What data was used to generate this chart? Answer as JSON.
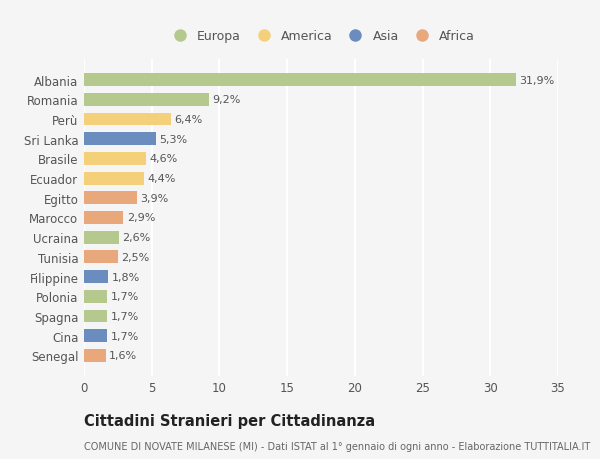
{
  "countries": [
    "Albania",
    "Romania",
    "Perù",
    "Sri Lanka",
    "Brasile",
    "Ecuador",
    "Egitto",
    "Marocco",
    "Ucraina",
    "Tunisia",
    "Filippine",
    "Polonia",
    "Spagna",
    "Cina",
    "Senegal"
  ],
  "values": [
    31.9,
    9.2,
    6.4,
    5.3,
    4.6,
    4.4,
    3.9,
    2.9,
    2.6,
    2.5,
    1.8,
    1.7,
    1.7,
    1.7,
    1.6
  ],
  "categories": [
    "Europa",
    "Europa",
    "America",
    "Asia",
    "America",
    "America",
    "Africa",
    "Africa",
    "Europa",
    "Africa",
    "Asia",
    "Europa",
    "Europa",
    "Asia",
    "Africa"
  ],
  "colors": {
    "Europa": "#b5c98e",
    "America": "#f5d07a",
    "Asia": "#6b8cbf",
    "Africa": "#e8a87c"
  },
  "legend_order": [
    "Europa",
    "America",
    "Asia",
    "Africa"
  ],
  "legend_colors": [
    "#b5c98e",
    "#f5d07a",
    "#6b8cbf",
    "#e8a87c"
  ],
  "title": "Cittadini Stranieri per Cittadinanza",
  "subtitle": "COMUNE DI NOVATE MILANESE (MI) - Dati ISTAT al 1° gennaio di ogni anno - Elaborazione TUTTITALIA.IT",
  "xlim": [
    0,
    35
  ],
  "xticks": [
    0,
    5,
    10,
    15,
    20,
    25,
    30,
    35
  ],
  "background_color": "#f5f5f5",
  "plot_bg_color": "#f5f5f5",
  "grid_color": "#ffffff",
  "bar_height": 0.65,
  "label_fontsize": 8.0,
  "ytick_fontsize": 8.5,
  "xtick_fontsize": 8.5,
  "title_fontsize": 10.5,
  "subtitle_fontsize": 7.0
}
